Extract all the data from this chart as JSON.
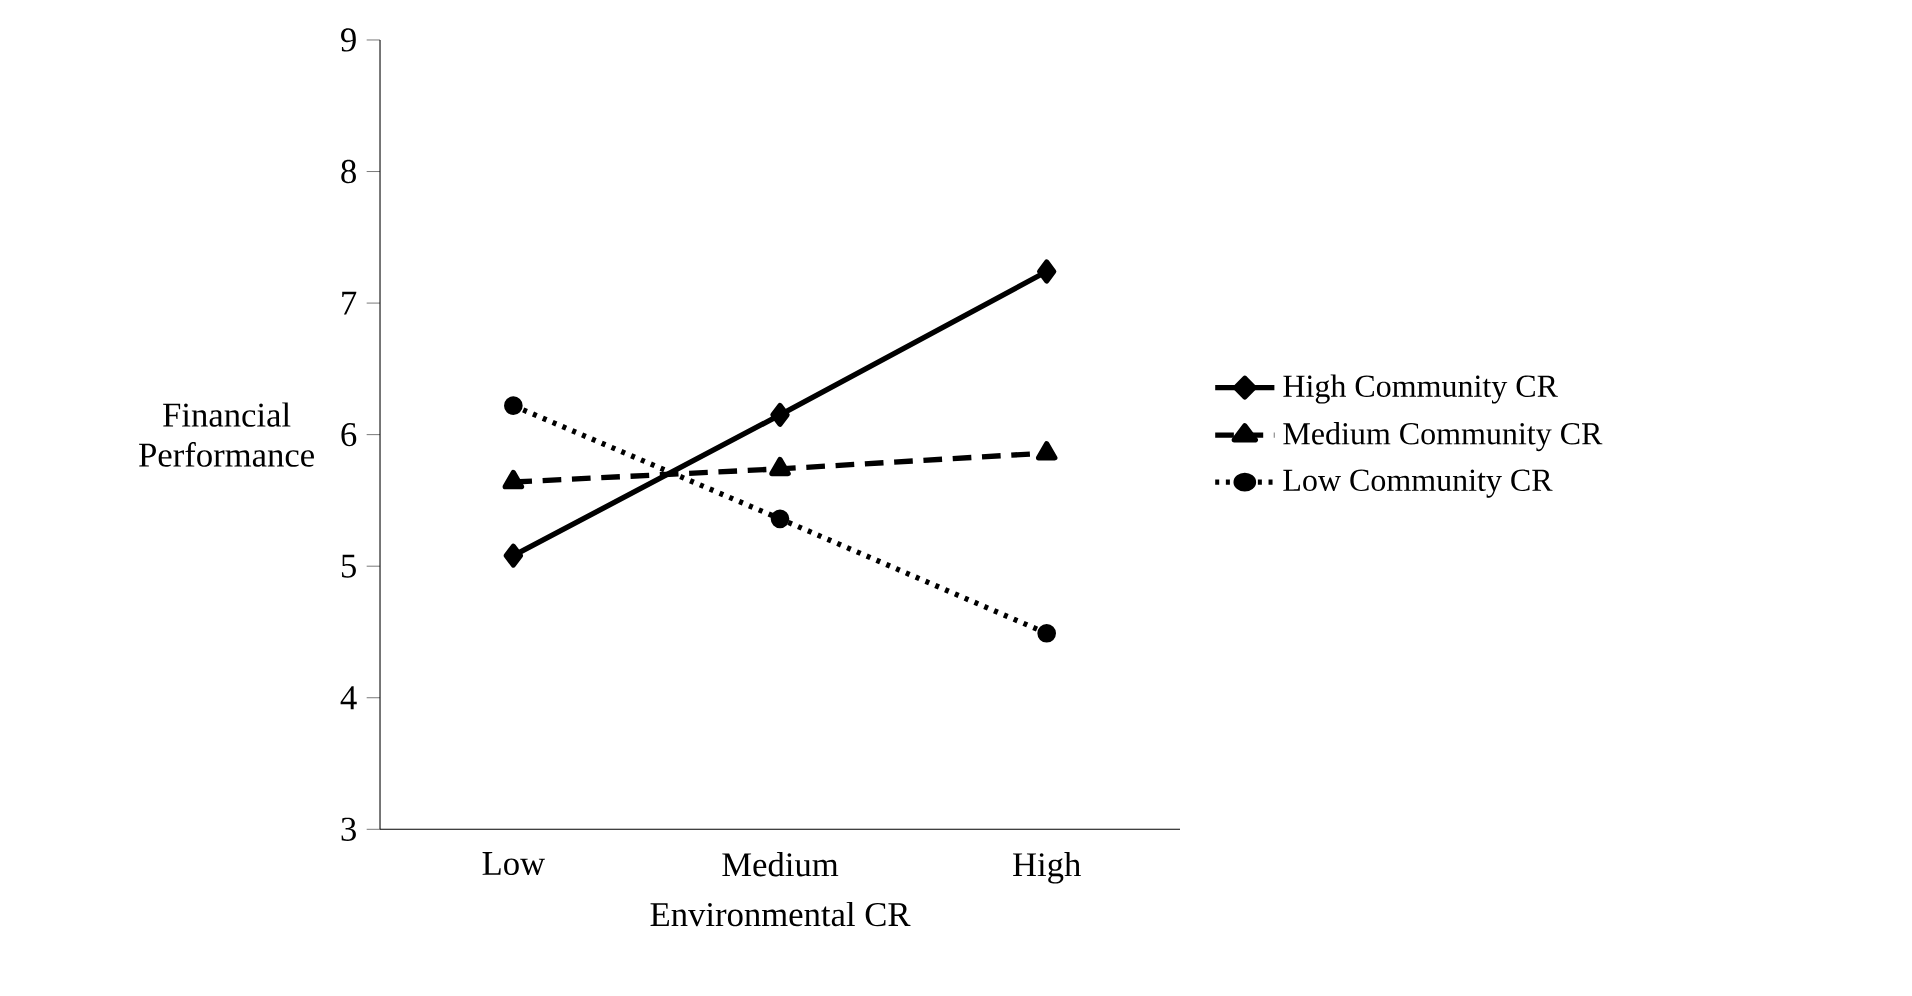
{
  "chart_data": {
    "type": "line",
    "xlabel": "Environmental CR",
    "ylabel": "Financial Performance",
    "categories": [
      "Low",
      "Medium",
      "High"
    ],
    "ylim": [
      3,
      9
    ],
    "yticks": [
      3,
      4,
      5,
      6,
      7,
      8,
      9
    ],
    "grid": false,
    "legend": "right",
    "series": [
      {
        "name": "High Community CR",
        "color": "#000000",
        "marker": "diamond",
        "line_style": "solid",
        "values": [
          5.08,
          6.15,
          7.24
        ]
      },
      {
        "name": "Medium Community CR",
        "color": "#000000",
        "marker": "triangle",
        "line_style": "dashed",
        "values": [
          5.64,
          5.74,
          5.86
        ]
      },
      {
        "name": "Low Community CR",
        "color": "#000000",
        "marker": "circle",
        "line_style": "dotted",
        "values": [
          6.22,
          5.36,
          4.49
        ]
      }
    ]
  }
}
